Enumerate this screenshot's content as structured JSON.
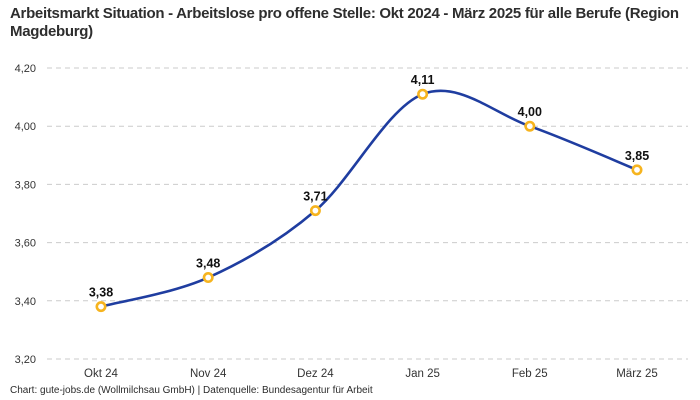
{
  "header": {
    "title": "Arbeitsmarkt Situation - Arbeitslose pro offene Stelle: Okt 2024 - März 2025 für alle Berufe (Region Magdeburg)"
  },
  "footer": {
    "credit": "Chart: gute-jobs.de (Wollmilchsau GmbH) | Datenquelle: Bundesagentur für Arbeit"
  },
  "chart_data": {
    "type": "line",
    "title": "Arbeitsmarkt Situation - Arbeitslose pro offene Stelle: Okt 2024 - März 2025 für alle Berufe (Region Magdeburg)",
    "categories": [
      "Okt 24",
      "Nov 24",
      "Dez 24",
      "Jan 25",
      "Feb 25",
      "März 25"
    ],
    "values": [
      3.38,
      3.48,
      3.71,
      4.11,
      4.0,
      3.85
    ],
    "value_labels": [
      "3,38",
      "3,48",
      "3,71",
      "4,11",
      "4,00",
      "3,85"
    ],
    "y_ticks": [
      3.2,
      3.4,
      3.6,
      3.8,
      4.0,
      4.2
    ],
    "y_tick_labels": [
      "3,20",
      "3,40",
      "3,60",
      "3,80",
      "4,00",
      "4,20"
    ],
    "ylim": [
      3.2,
      4.2
    ],
    "xlabel": "",
    "ylabel": "",
    "grid": "horizontal-dashed",
    "legend_position": "none",
    "line_style": "smooth",
    "colors": {
      "line": "#1f3da0",
      "marker_ring": "#f6b41f",
      "marker_fill": "#ffffff",
      "grid": "#cbcbcb",
      "point_label": "#111111",
      "tick_label": "#333333"
    }
  }
}
